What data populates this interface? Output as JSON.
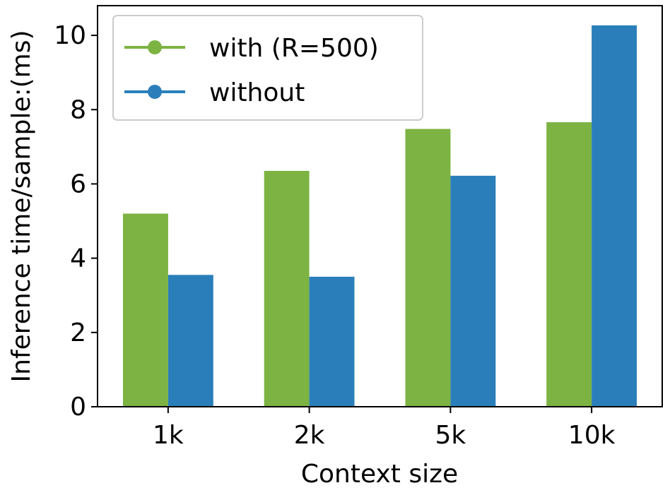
{
  "chart_data": {
    "type": "bar",
    "title": "",
    "xlabel": "Context size",
    "ylabel": "Inference time/sample:(ms)",
    "categories": [
      "1k",
      "2k",
      "5k",
      "10k"
    ],
    "series": [
      {
        "name": "with (R=500)",
        "color": "#7cb342",
        "values": [
          5.2,
          6.35,
          7.48,
          7.66
        ]
      },
      {
        "name": "without",
        "color": "#2a7fba",
        "values": [
          3.55,
          3.5,
          6.22,
          10.27
        ]
      }
    ],
    "ylim": [
      0,
      10.8
    ],
    "yticks": [
      0,
      2,
      4,
      6,
      8,
      10
    ],
    "grid": false,
    "legend_position": "upper-left"
  }
}
